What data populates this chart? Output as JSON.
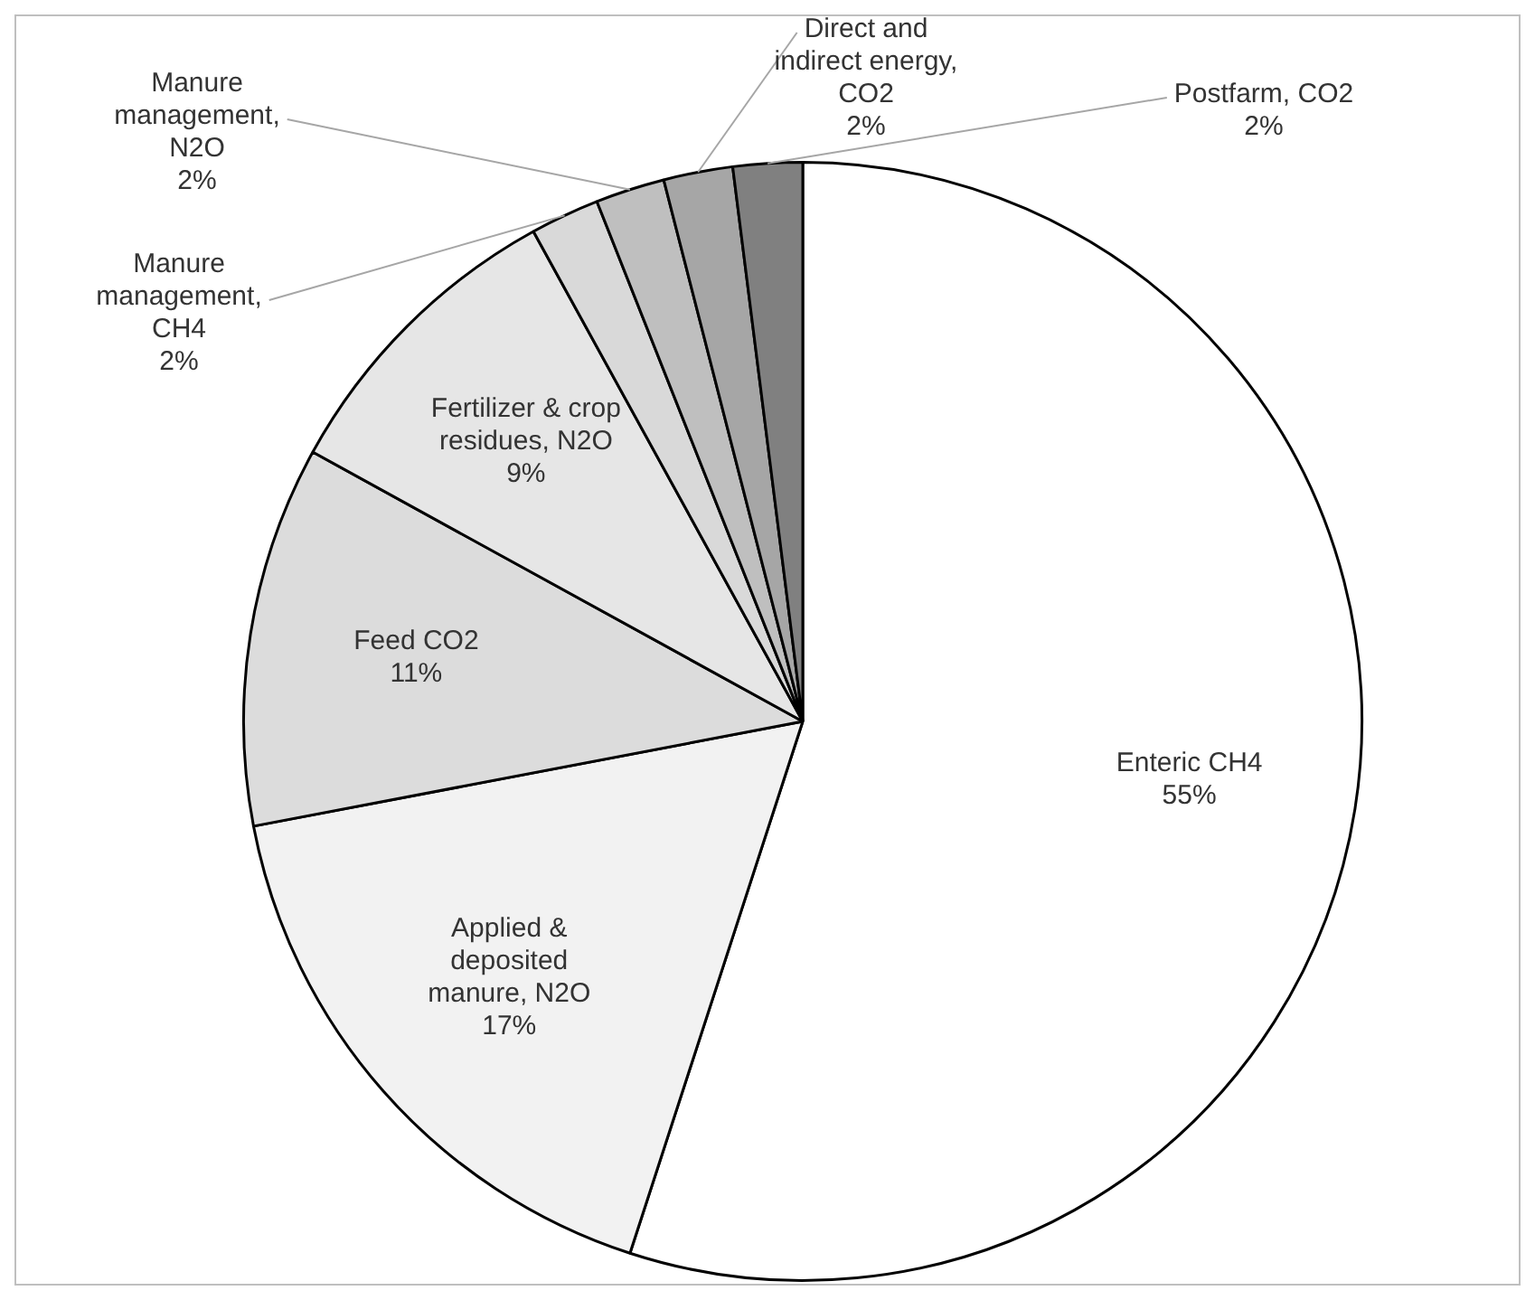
{
  "chart_data": {
    "type": "pie",
    "categories": [
      "Enteric CH4",
      "Applied & deposited manure, N2O",
      "Feed CO2",
      "Fertilizer & crop residues, N2O",
      "Manure management, CH4",
      "Manure management, N2O",
      "Direct and indirect energy, CO2",
      "Postfarm, CO2"
    ],
    "values": [
      55,
      17,
      11,
      9,
      2,
      2,
      2,
      2
    ],
    "value_labels": [
      "55%",
      "17%",
      "11%",
      "9%",
      "2%",
      "2%",
      "2%",
      "2%"
    ],
    "colors": [
      "#ffffff",
      "#f2f2f2",
      "#dcdcdc",
      "#e6e6e6",
      "#d9d9d9",
      "#bfbfbf",
      "#a6a6a6",
      "#808080"
    ],
    "legend": false
  }
}
